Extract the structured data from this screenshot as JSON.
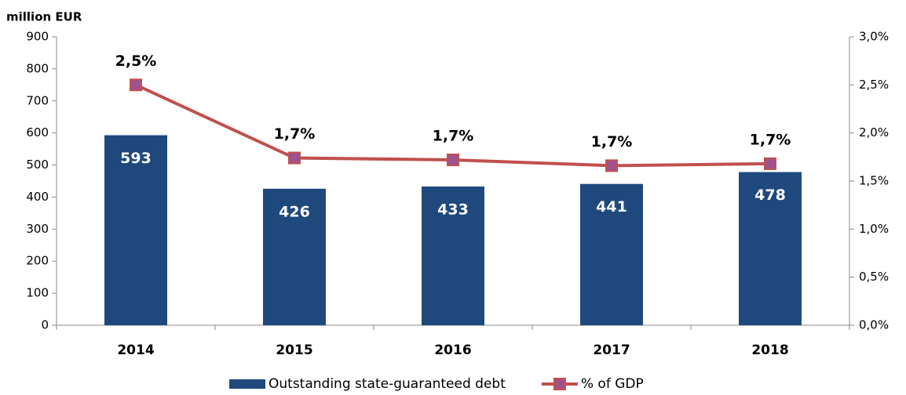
{
  "chart_data": {
    "type": "combo",
    "y_axis_label": "million EUR",
    "categories": [
      "2014",
      "2015",
      "2016",
      "2017",
      "2018"
    ],
    "series": [
      {
        "name": "Outstanding state-guaranteed debt",
        "type": "bar",
        "color": "#1f497d",
        "values": [
          593,
          426,
          433,
          441,
          478
        ]
      },
      {
        "name": "% of GDP",
        "type": "line",
        "axis": "y2",
        "color": "#c0504d",
        "marker_color": "#a0528f",
        "values": [
          2.5,
          1.74,
          1.72,
          1.66,
          1.68
        ],
        "value_labels": [
          "2,5%",
          "1,7%",
          "1,7%",
          "1,7%",
          "1,7%"
        ]
      }
    ],
    "ylim": [
      0,
      900
    ],
    "yticks": [
      0,
      100,
      200,
      300,
      400,
      500,
      600,
      700,
      800,
      900
    ],
    "y2lim": [
      0,
      3
    ],
    "y2ticks": [
      {
        "value": 0,
        "label": "0,0%"
      },
      {
        "value": 0.5,
        "label": "0,5%"
      },
      {
        "value": 1,
        "label": "1,0%"
      },
      {
        "value": 1.5,
        "label": "1,5%"
      },
      {
        "value": 2,
        "label": "2,0%"
      },
      {
        "value": 2.5,
        "label": "2,5%"
      },
      {
        "value": 3,
        "label": "3,0%"
      }
    ],
    "grid": false,
    "legend": "bottom"
  }
}
